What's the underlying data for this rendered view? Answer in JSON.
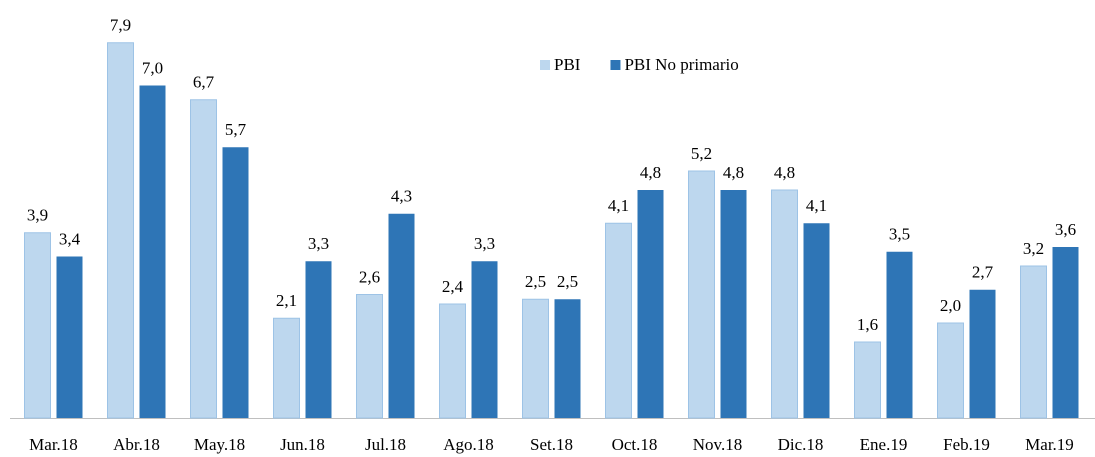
{
  "chart_data": {
    "type": "bar",
    "categories": [
      "Mar.18",
      "Abr.18",
      "May.18",
      "Jun.18",
      "Jul.18",
      "Ago.18",
      "Set.18",
      "Oct.18",
      "Nov.18",
      "Dic.18",
      "Ene.19",
      "Feb.19",
      "Mar.19"
    ],
    "series": [
      {
        "name": "PBI",
        "color": "#bdd7ee",
        "values": [
          3.9,
          7.9,
          6.7,
          2.1,
          2.6,
          2.4,
          2.5,
          4.1,
          5.2,
          4.8,
          1.6,
          2.0,
          3.2
        ],
        "value_labels": [
          "3,9",
          "7,9",
          "6,7",
          "2,1",
          "2,6",
          "2,4",
          "2,5",
          "4,1",
          "5,2",
          "4,8",
          "1,6",
          "2,0",
          "3,2"
        ]
      },
      {
        "name": "PBI No primario",
        "color": "#2e75b6",
        "values": [
          3.4,
          7.0,
          5.7,
          3.3,
          4.3,
          3.3,
          2.5,
          4.8,
          4.8,
          4.1,
          3.5,
          2.7,
          3.6
        ],
        "value_labels": [
          "3,4",
          "7,0",
          "5,7",
          "3,3",
          "4,3",
          "3,3",
          "2,5",
          "4,8",
          "4,8",
          "4,1",
          "3,5",
          "2,7",
          "3,6"
        ]
      }
    ],
    "ylim": [
      0,
      8.8
    ],
    "legend": "top"
  }
}
